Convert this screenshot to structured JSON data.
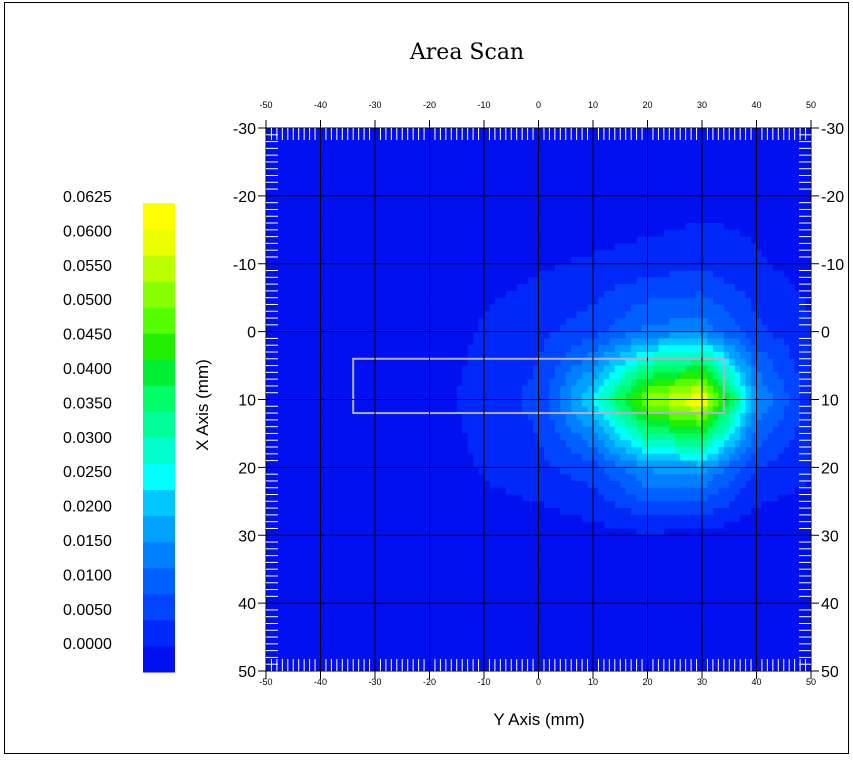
{
  "chart_data": {
    "type": "heatmap",
    "title": "Area Scan",
    "xlabel": "Y Axis (mm)",
    "ylabel": "X Axis (mm)",
    "xlim": [
      -50,
      50
    ],
    "ylim": [
      -30,
      50
    ],
    "y_axis_inverted": true,
    "x_ticks": [
      -50,
      -40,
      -30,
      -20,
      -10,
      0,
      10,
      20,
      30,
      40,
      50
    ],
    "y_ticks": [
      -30,
      -20,
      -10,
      0,
      10,
      20,
      30,
      40,
      50
    ],
    "grid": true,
    "colorbar": {
      "levels": [
        "0.0625",
        "0.0600",
        "0.0550",
        "0.0500",
        "0.0450",
        "0.0400",
        "0.0350",
        "0.0300",
        "0.0250",
        "0.0200",
        "0.0150",
        "0.0100",
        "0.0050",
        "0.0000"
      ],
      "min": 0.0,
      "max": 0.0625,
      "colors": [
        "#0010f0",
        "#0028f8",
        "#0044ff",
        "#0060ff",
        "#0080ff",
        "#00a0ff",
        "#00c8ff",
        "#00ffff",
        "#00ffcc",
        "#00ff99",
        "#00ff66",
        "#00ee33",
        "#22ee00",
        "#55ff00",
        "#88ff00",
        "#bbff00",
        "#eeff00",
        "#ffff00"
      ],
      "placement": "left"
    },
    "grid_x": [
      -50,
      -40,
      -30,
      -20,
      -10,
      0,
      10,
      20,
      30,
      40,
      50
    ],
    "grid_y": [
      -30,
      -20,
      -10,
      0,
      10,
      20,
      30,
      40,
      50
    ],
    "values": [
      [
        0.0005,
        0.0005,
        0.0005,
        0.0005,
        0.0005,
        0.0005,
        0.0005,
        0.0005,
        0.0005,
        0.0005,
        0.0005
      ],
      [
        0.0005,
        0.0005,
        0.0005,
        0.0005,
        0.0005,
        0.0005,
        0.0005,
        0.001,
        0.002,
        0.002,
        0.0005
      ],
      [
        0.0005,
        0.0005,
        0.0005,
        0.0005,
        0.002,
        0.003,
        0.004,
        0.005,
        0.006,
        0.004,
        0.002
      ],
      [
        0.0005,
        0.0005,
        0.0005,
        0.001,
        0.004,
        0.006,
        0.009,
        0.015,
        0.016,
        0.008,
        0.004
      ],
      [
        0.0005,
        0.0005,
        0.0005,
        0.002,
        0.005,
        0.008,
        0.025,
        0.05,
        0.06,
        0.018,
        0.005
      ],
      [
        0.0005,
        0.0005,
        0.0005,
        0.001,
        0.004,
        0.006,
        0.009,
        0.018,
        0.019,
        0.007,
        0.004
      ],
      [
        0.0005,
        0.0005,
        0.0005,
        0.0005,
        0.001,
        0.001,
        0.002,
        0.003,
        0.002,
        0.001,
        0.0005
      ],
      [
        0.0005,
        0.0005,
        0.0005,
        0.0005,
        0.0005,
        0.0005,
        0.0005,
        0.0005,
        0.0005,
        0.0005,
        0.0005
      ],
      [
        0.0005,
        0.0005,
        0.0005,
        0.0005,
        0.0005,
        0.0005,
        0.0005,
        0.0005,
        0.0005,
        0.0005,
        0.0005
      ]
    ],
    "overlay_rect": {
      "x_range": [
        -34,
        34
      ],
      "y_range": [
        4,
        12
      ],
      "color": "#b0b0c8"
    }
  }
}
